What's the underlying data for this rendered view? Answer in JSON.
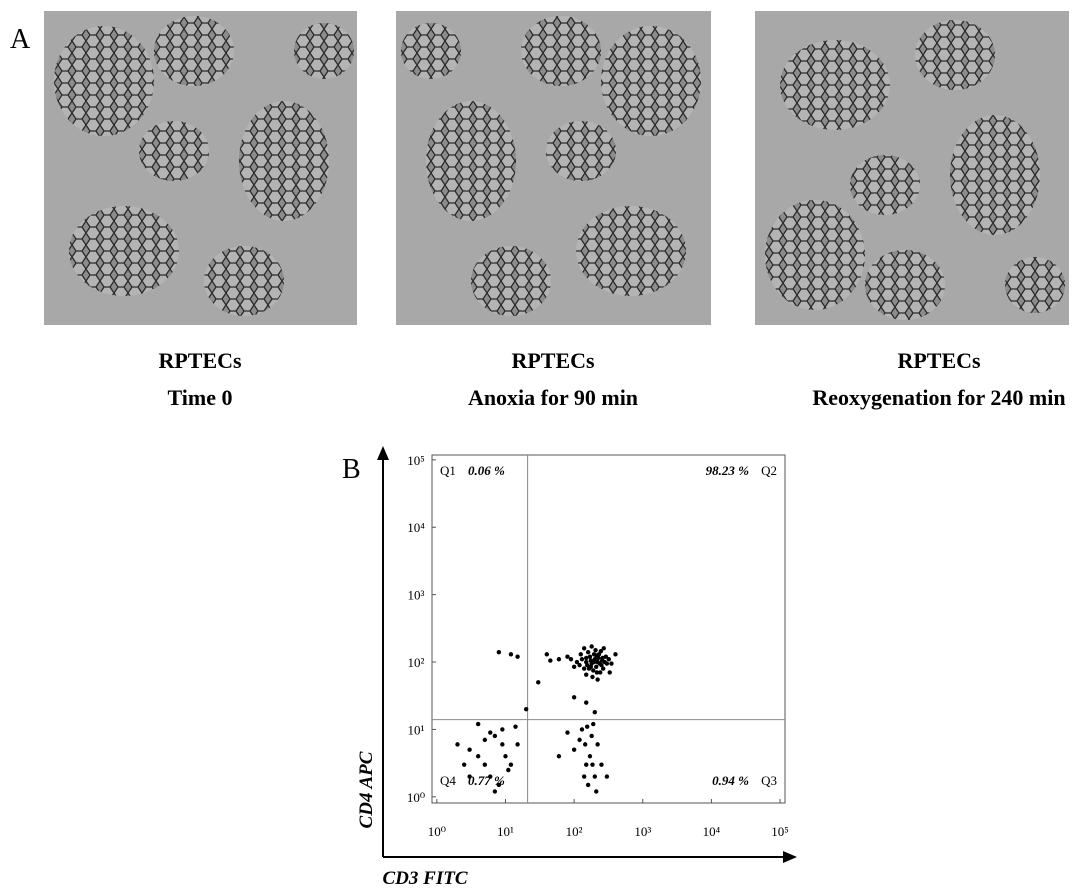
{
  "panel_a": {
    "label": "A",
    "images": [
      {
        "caption": [
          "RPTECs",
          "Time 0"
        ]
      },
      {
        "caption": [
          "RPTECs",
          "Anoxia for 90 min"
        ]
      },
      {
        "caption": [
          "RPTECs",
          "Reoxygenation for 240 min"
        ]
      }
    ]
  },
  "panel_b": {
    "label": "B"
  },
  "chart_data": {
    "type": "scatter",
    "x_label": "CD3 FITC",
    "y_label": "CD4 APC",
    "log_x": true,
    "log_y": true,
    "xlim": [
      0.85,
      118000
    ],
    "ylim": [
      0.81,
      118000
    ],
    "xticks": [
      {
        "value": 1,
        "label": "10⁰"
      },
      {
        "value": 10,
        "label": "10¹"
      },
      {
        "value": 100,
        "label": "10²"
      },
      {
        "value": 1000,
        "label": "10³"
      },
      {
        "value": 10000,
        "label": "10⁴"
      },
      {
        "value": 100000,
        "label": "10⁵"
      }
    ],
    "yticks": [
      {
        "value": 1,
        "label": "10⁰"
      },
      {
        "value": 10,
        "label": "10¹"
      },
      {
        "value": 100,
        "label": "10²"
      },
      {
        "value": 1000,
        "label": "10³"
      },
      {
        "value": 10000,
        "label": "10⁴"
      },
      {
        "value": 100000,
        "label": "10⁵"
      }
    ],
    "gate": {
      "x": 21,
      "y": 14
    },
    "quadrants": [
      {
        "name": "Q1",
        "percent": "0.06 %"
      },
      {
        "name": "Q2",
        "percent": "98.23 %"
      },
      {
        "name": "Q3",
        "percent": "0.94 %"
      },
      {
        "name": "Q4",
        "percent": "0.77 %"
      }
    ],
    "series": [
      {
        "color": "#000000",
        "x": [
          120,
          150,
          180,
          200,
          220,
          250,
          170,
          140,
          190,
          230,
          260,
          160,
          210,
          130,
          280,
          175,
          195,
          240,
          150,
          300,
          110,
          205,
          185,
          265,
          125,
          225,
          155,
          245,
          215,
          290,
          100,
          320,
          90,
          350,
          80,
          60,
          45,
          400,
          180,
          220,
          270,
          140,
          330,
          165,
          235,
          195,
          175,
          210,
          150,
          255,
          12,
          8,
          15,
          3,
          5,
          7,
          4,
          10,
          6,
          2,
          9,
          12,
          5,
          8,
          3,
          15,
          6,
          11,
          4,
          7,
          14,
          2.5,
          9,
          100,
          150,
          180,
          200,
          130,
          170,
          220,
          160,
          140,
          190,
          250,
          120,
          60,
          80,
          210,
          300,
          155,
          185,
          145,
          20,
          150,
          100,
          200,
          30,
          40
        ],
        "y": [
          90,
          100,
          95,
          110,
          100,
          90,
          120,
          80,
          75,
          130,
          115,
          140,
          85,
          110,
          100,
          105,
          130,
          70,
          65,
          95,
          100,
          150,
          60,
          80,
          130,
          115,
          90,
          145,
          70,
          120,
          85,
          110,
          110,
          95,
          120,
          110,
          105,
          130,
          170,
          55,
          160,
          160,
          70,
          80,
          95,
          100,
          85,
          125,
          115,
          105,
          130,
          140,
          120,
          5,
          3,
          8,
          12,
          4,
          2,
          6,
          10,
          3,
          7,
          1.5,
          2,
          6,
          9,
          2.5,
          4,
          1.2,
          11,
          3,
          6,
          5,
          3,
          8,
          2,
          10,
          4,
          6,
          1.5,
          2,
          12,
          3,
          7,
          4,
          9,
          1.2,
          2,
          11,
          3,
          6,
          20,
          25,
          30,
          18,
          50,
          130
        ]
      }
    ]
  }
}
